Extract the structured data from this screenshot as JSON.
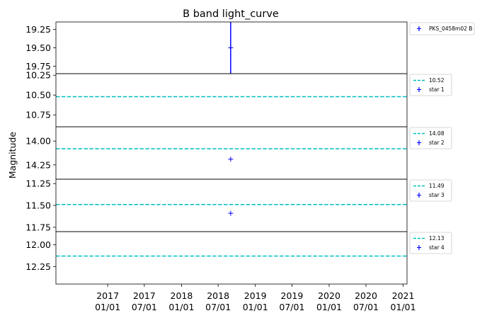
{
  "chart_data": {
    "type": "scatter",
    "title": "B band light_curve",
    "ylabel": "Magnitude",
    "xlabel": "",
    "x_axis": {
      "type": "date",
      "range": [
        "2016-04-20",
        "2021-01-20"
      ],
      "ticks": [
        {
          "date": "2017-01-01",
          "label": [
            "2017",
            "01/01"
          ]
        },
        {
          "date": "2017-07-01",
          "label": [
            "2017",
            "07/01"
          ]
        },
        {
          "date": "2018-01-01",
          "label": [
            "2018",
            "01/01"
          ]
        },
        {
          "date": "2018-07-01",
          "label": [
            "2018",
            "07/01"
          ]
        },
        {
          "date": "2019-01-01",
          "label": [
            "2019",
            "01/01"
          ]
        },
        {
          "date": "2019-07-01",
          "label": [
            "2019",
            "07/01"
          ]
        },
        {
          "date": "2020-01-01",
          "label": [
            "2020",
            "01/01"
          ]
        },
        {
          "date": "2020-07-01",
          "label": [
            "2020",
            "07/01"
          ]
        },
        {
          "date": "2021-01-01",
          "label": [
            "2021",
            "01/01"
          ]
        }
      ]
    },
    "panels": [
      {
        "ylim": [
          19.85,
          19.15
        ],
        "yticks": [
          "19.25",
          "19.50",
          "19.75"
        ],
        "mean": null,
        "legend": [
          "PKS_0458m02 B"
        ],
        "points": [
          {
            "date": "2018-09-01",
            "y": 19.5,
            "yerr": 0.35
          }
        ],
        "color": "#0000ff"
      },
      {
        "ylim": [
          10.9,
          10.23
        ],
        "yticks": [
          "10.25",
          "10.50",
          "10.75"
        ],
        "mean": 10.52,
        "legend": [
          "10.52",
          "star 1"
        ],
        "points": [],
        "color": "#0000ff"
      },
      {
        "ylim": [
          14.4,
          13.85
        ],
        "yticks": [
          "14.00",
          "14.25"
        ],
        "mean": 14.08,
        "legend": [
          "14.08",
          "star 2"
        ],
        "points": [
          {
            "date": "2018-09-01",
            "y": 14.19,
            "yerr": 0
          }
        ],
        "color": "#0000ff"
      },
      {
        "ylim": [
          11.8,
          11.2
        ],
        "yticks": [
          "11.25",
          "11.50",
          "11.75"
        ],
        "mean": 11.49,
        "legend": [
          "11.49",
          "star 3"
        ],
        "points": [
          {
            "date": "2018-09-01",
            "y": 11.59,
            "yerr": 0
          }
        ],
        "color": "#0000ff"
      },
      {
        "ylim": [
          12.45,
          11.85
        ],
        "yticks": [
          "12.00",
          "12.25"
        ],
        "mean": 12.13,
        "legend": [
          "12.13",
          "star 4"
        ],
        "points": [],
        "color": "#0000ff"
      }
    ],
    "mean_line_color": "#00bfbf",
    "point_color": "#0000ff",
    "grid": false,
    "legend_position": "outside-right"
  }
}
